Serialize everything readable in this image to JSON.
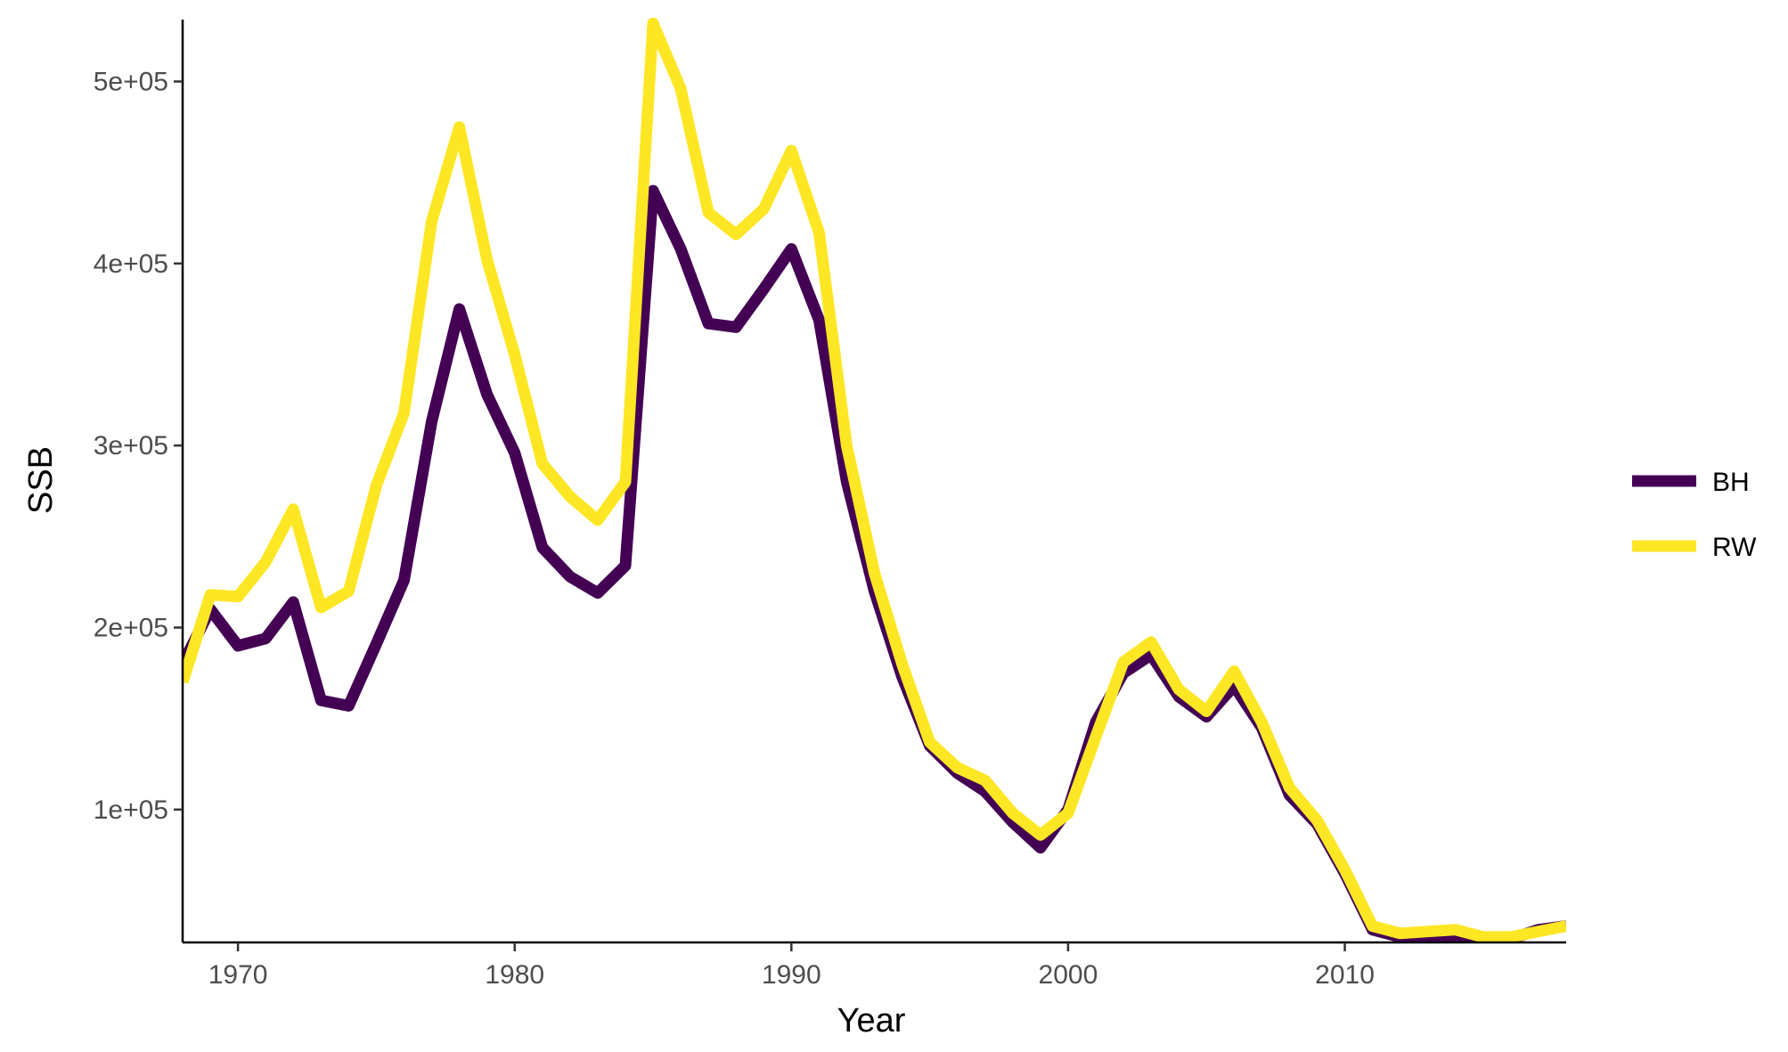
{
  "chart_data": {
    "type": "line",
    "xlabel": "Year",
    "ylabel": "SSB",
    "xlim": [
      1968,
      2018
    ],
    "ylim": [
      27000,
      534000
    ],
    "x_ticks": [
      1970,
      1980,
      1990,
      2000,
      2010
    ],
    "x_tick_labels": [
      "1970",
      "1980",
      "1990",
      "2000",
      "2010"
    ],
    "y_ticks": [
      100000,
      200000,
      300000,
      400000,
      500000
    ],
    "y_tick_labels": [
      "1e+05",
      "2e+05",
      "3e+05",
      "4e+05",
      "5e+05"
    ],
    "grid": false,
    "legend_position": "right",
    "x": [
      1968,
      1969,
      1970,
      1971,
      1972,
      1973,
      1974,
      1975,
      1976,
      1977,
      1978,
      1979,
      1980,
      1981,
      1982,
      1983,
      1984,
      1985,
      1986,
      1987,
      1988,
      1989,
      1990,
      1991,
      1992,
      1993,
      1994,
      1995,
      1996,
      1997,
      1998,
      1999,
      2000,
      2001,
      2002,
      2003,
      2004,
      2005,
      2006,
      2007,
      2008,
      2009,
      2010,
      2011,
      2012,
      2013,
      2014,
      2015,
      2016,
      2017,
      2018
    ],
    "series": [
      {
        "name": "BH",
        "color": "#440154",
        "values": [
          180000,
          210000,
          190000,
          194000,
          214000,
          160000,
          157000,
          191000,
          226000,
          313000,
          375000,
          328000,
          296000,
          244000,
          228000,
          219000,
          234000,
          440000,
          408000,
          367000,
          365000,
          386000,
          408000,
          369000,
          280000,
          220000,
          173000,
          135000,
          120000,
          110000,
          93000,
          79000,
          100000,
          148000,
          175000,
          185000,
          162000,
          151000,
          168000,
          145000,
          108000,
          92000,
          65000,
          34000,
          30000,
          30000,
          29000,
          29000,
          29000,
          34000,
          36000
        ]
      },
      {
        "name": "RW",
        "color": "#fde725",
        "values": [
          170000,
          218000,
          217000,
          236000,
          265000,
          211000,
          220000,
          278000,
          318000,
          423000,
          475000,
          402000,
          350000,
          290000,
          272000,
          259000,
          280000,
          532000,
          496000,
          428000,
          416000,
          430000,
          462000,
          417000,
          300000,
          230000,
          180000,
          137000,
          123000,
          116000,
          98000,
          86000,
          98000,
          140000,
          181000,
          192000,
          166000,
          154000,
          176000,
          148000,
          112000,
          94000,
          67000,
          36000,
          32000,
          33000,
          34000,
          30000,
          30000,
          33000,
          36000
        ]
      }
    ]
  }
}
